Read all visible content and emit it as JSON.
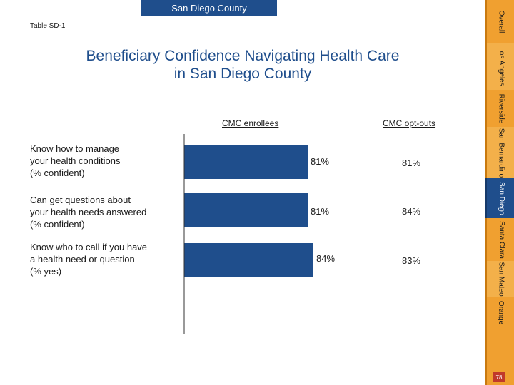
{
  "header": {
    "county_tab": "San Diego County",
    "table_id": "Table SD-1"
  },
  "chart_data": {
    "type": "bar",
    "title": "Beneficiary Confidence Navigating Health Care in San Diego County",
    "title_lines": [
      "Beneficiary Confidence Navigating Health Care",
      "in San Diego County"
    ],
    "column_headers": [
      "CMC enrollees",
      "CMC opt-outs"
    ],
    "categories": [
      [
        "Know how to manage",
        "your health conditions",
        "(% confident)"
      ],
      [
        "Can get questions about",
        "your health needs answered",
        "(% confident)"
      ],
      [
        "Know who to call if you have",
        "a health need or question",
        "(% yes)"
      ]
    ],
    "series": [
      {
        "name": "CMC enrollees",
        "values": [
          81,
          81,
          84
        ],
        "labels": [
          "81%",
          "81%",
          "84%"
        ]
      },
      {
        "name": "CMC opt-outs",
        "values": [
          81,
          84,
          83
        ],
        "labels": [
          "81%",
          "84%",
          "83%"
        ]
      }
    ],
    "xlim": [
      0,
      100
    ],
    "bar_color": "#1f4e8c"
  },
  "sidebar": {
    "tabs": [
      {
        "label": "Overall"
      },
      {
        "label": "Los Angeles"
      },
      {
        "label": "Riverside"
      },
      {
        "label": "San Bernardino"
      },
      {
        "label": "San Diego"
      },
      {
        "label": "Santa Clara"
      },
      {
        "label": "San Mateo"
      },
      {
        "label": "Orange"
      }
    ],
    "active_index": 4
  },
  "footer": {
    "page_number": "78"
  }
}
